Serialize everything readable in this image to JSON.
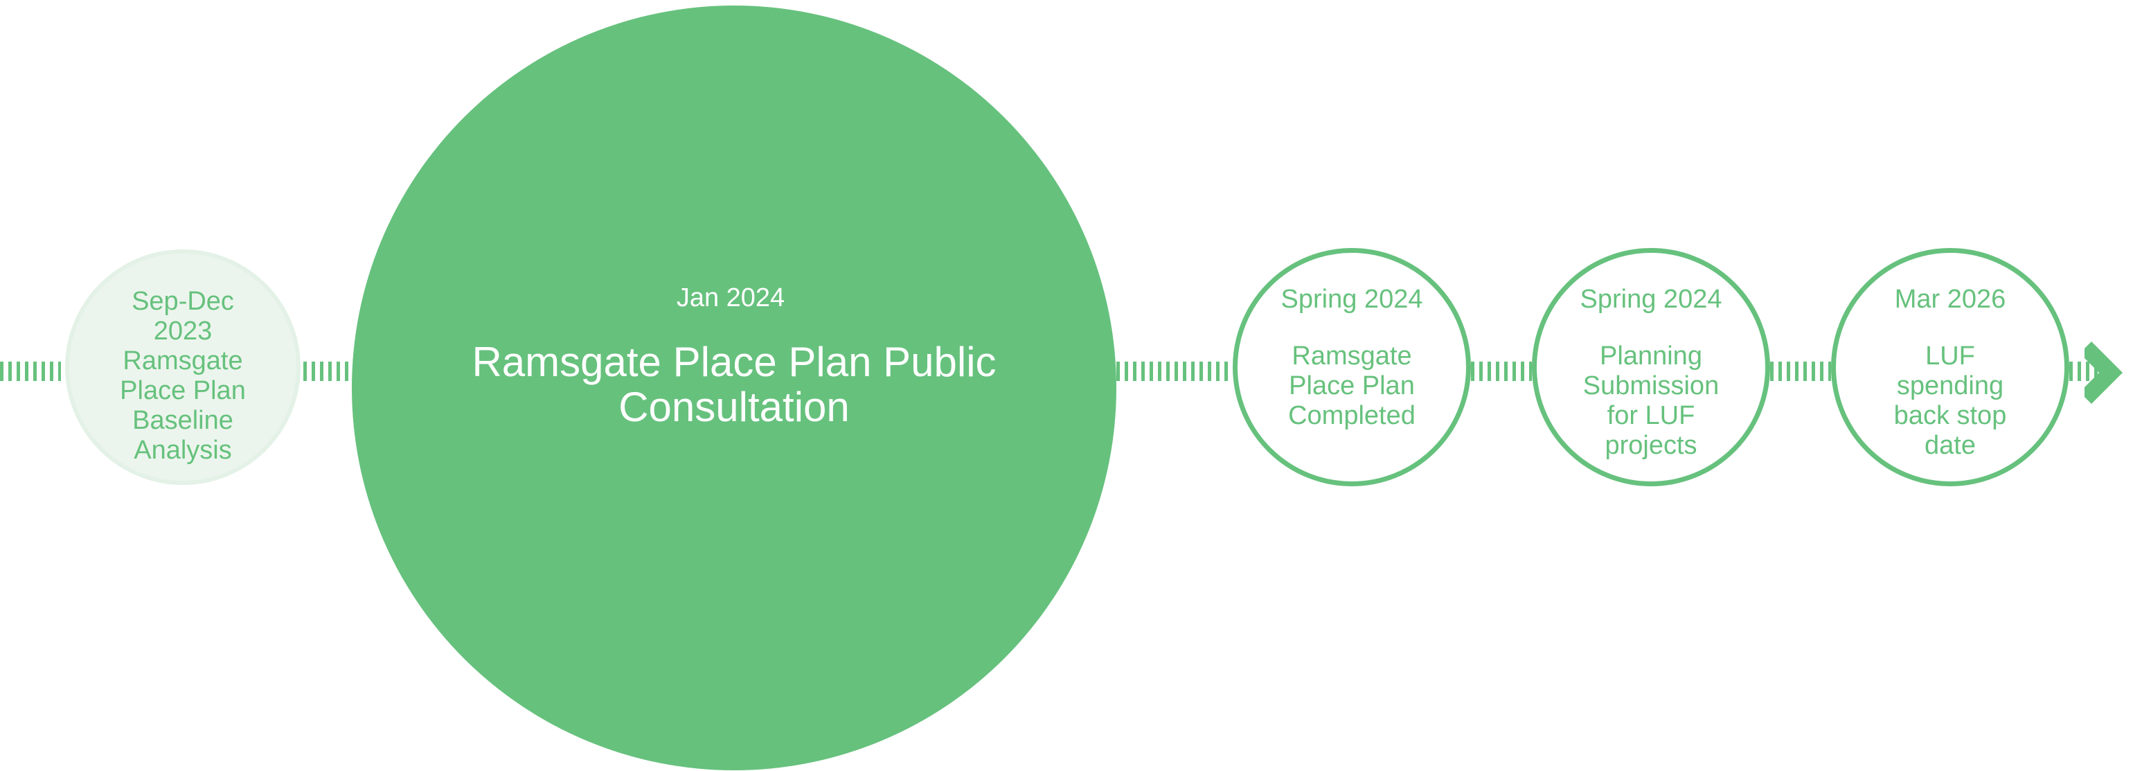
{
  "colors": {
    "accent": "#66c17d",
    "past_fill": "#ecf5ed",
    "text_on_accent": "#ffffff"
  },
  "timeline": {
    "milestones": [
      {
        "date": "Sep-Dec 2023",
        "label": "Ramsgate Place Plan Baseline Analysis",
        "status": "past"
      },
      {
        "date": "Jan 2024",
        "label": "Ramsgate Place Plan Public Consultation",
        "status": "current"
      },
      {
        "date": "Spring 2024",
        "label": "Ramsgate Place Plan Completed",
        "status": "upcoming"
      },
      {
        "date": "Spring 2024",
        "label": "Planning Submission for LUF projects",
        "status": "upcoming"
      },
      {
        "date": "Mar 2026",
        "label": "LUF spending back stop date",
        "status": "upcoming"
      }
    ],
    "end_icon": "chevron-right-icon"
  }
}
